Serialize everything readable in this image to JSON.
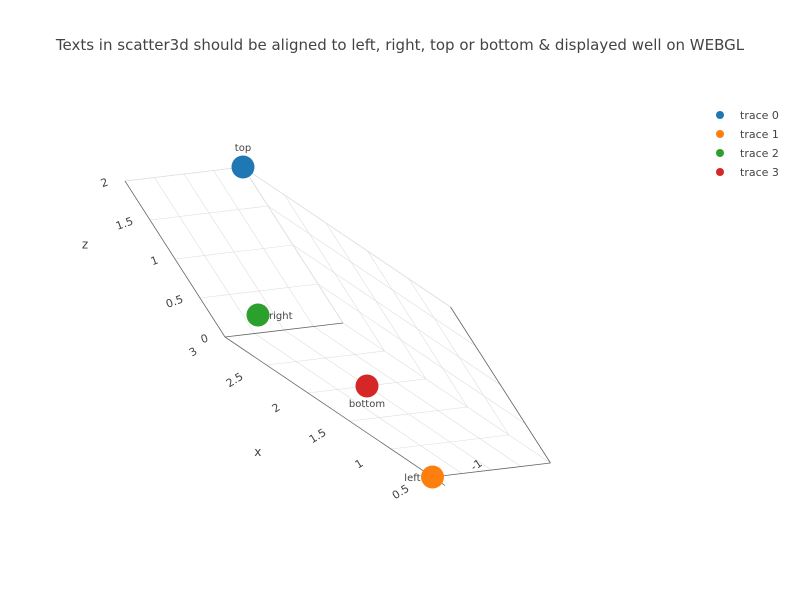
{
  "chart_data": {
    "type": "scatter3d",
    "title": "Texts in scatter3d should be aligned to left, right, top or bottom & displayed well on WEBGL",
    "axes": {
      "x": {
        "title": "x",
        "ticks": [
          "0.5",
          "1",
          "1.5",
          "2",
          "2.5",
          "3"
        ]
      },
      "y": {
        "title": "",
        "ticks": [
          "-1"
        ]
      },
      "z": {
        "title": "z",
        "ticks": [
          "0",
          "0.5",
          "1",
          "1.5",
          "2"
        ]
      }
    },
    "grid": true,
    "legend_position": "top-right",
    "series": [
      {
        "name": "trace 0",
        "color": "#1f77b4",
        "x": [
          3
        ],
        "y": [
          1
        ],
        "z": [
          2
        ],
        "text": [
          "top"
        ],
        "textposition": "top"
      },
      {
        "name": "trace 1",
        "color": "#ff7f0e",
        "x": [
          0.5
        ],
        "y": [
          -1
        ],
        "z": [
          0
        ],
        "text": [
          "left"
        ],
        "textposition": "left"
      },
      {
        "name": "trace 2",
        "color": "#2ca02c",
        "x": [
          2
        ],
        "y": [
          -1
        ],
        "z": [
          1
        ],
        "text": [
          "right"
        ],
        "textposition": "right"
      },
      {
        "name": "trace 3",
        "color": "#d62728",
        "x": [
          2
        ],
        "y": [
          0
        ],
        "z": [
          0
        ],
        "text": [
          "bottom"
        ],
        "textposition": "bottom"
      }
    ]
  }
}
